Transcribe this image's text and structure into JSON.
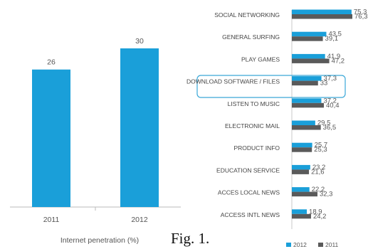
{
  "caption": "Fig. 1.",
  "colors": {
    "series_2012": "#1a9fd9",
    "series_2011": "#5a5a5a",
    "highlight": "#3aa8d8"
  },
  "chart_data": [
    {
      "type": "bar",
      "orientation": "vertical",
      "title": "",
      "xlabel": "Internet penetration (%)",
      "ylabel": "",
      "categories": [
        "2011",
        "2012"
      ],
      "values": [
        26,
        30
      ],
      "ylim": [
        0,
        30
      ],
      "grid": false
    },
    {
      "type": "bar",
      "orientation": "horizontal",
      "title": "",
      "xlabel": "",
      "ylabel": "",
      "categories": [
        "SOCIAL NETWORKING",
        "GENERAL SURFING",
        "PLAY GAMES",
        "DOWNLOAD SOFTWARE / FILES",
        "LISTEN TO MUSIC",
        "ELECTRONIC MAIL",
        "PRODUCT INFO",
        "EDUCATION SERVICE",
        "ACCES LOCAL NEWS",
        "ACCESS INTL NEWS"
      ],
      "series": [
        {
          "name": "2012",
          "values": [
            75.3,
            43.5,
            41.9,
            37.3,
            37.2,
            29.5,
            25.7,
            23.2,
            22.2,
            18.9
          ],
          "labels": [
            "75,3",
            "43,5",
            "41,9",
            "37,3",
            "37,2",
            "29,5",
            "25,7",
            "23,2",
            "22,2",
            "18,9"
          ]
        },
        {
          "name": "2011",
          "values": [
            76.3,
            39.1,
            47.2,
            33,
            40.4,
            36.5,
            25.3,
            21.6,
            32.3,
            24.2
          ],
          "labels": [
            "76,3",
            "39,1",
            "47,2",
            "33",
            "40,4",
            "36,5",
            "25,3",
            "21,6",
            "32,3",
            "24,2"
          ]
        }
      ],
      "highlighted_category": "DOWNLOAD SOFTWARE / FILES",
      "legend": {
        "position": "bottom",
        "entries": [
          "2012",
          "2011"
        ]
      },
      "grid": false
    }
  ]
}
